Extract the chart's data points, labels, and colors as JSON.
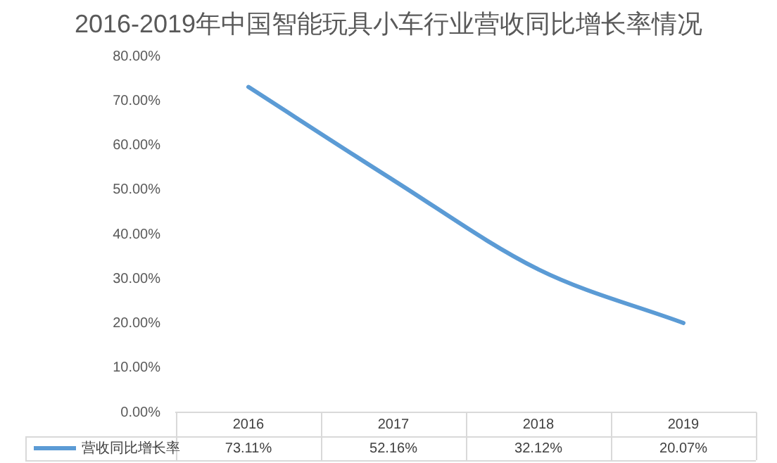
{
  "chart_data": {
    "type": "line",
    "title": "2016-2019年中国智能玩具小车行业营收同比增长率情况",
    "categories": [
      "2016",
      "2017",
      "2018",
      "2019"
    ],
    "series": [
      {
        "name": "营收同比增长率",
        "color": "#5b9bd5",
        "values": [
          73.11,
          52.16,
          32.12,
          20.07
        ],
        "value_labels": [
          "73.11%",
          "52.16%",
          "32.12%",
          "20.07%"
        ]
      }
    ],
    "ylim": [
      0,
      80
    ],
    "yticks": [
      {
        "value": 0,
        "label": "0.00%"
      },
      {
        "value": 10,
        "label": "10.00%"
      },
      {
        "value": 20,
        "label": "20.00%"
      },
      {
        "value": 30,
        "label": "30.00%"
      },
      {
        "value": 40,
        "label": "40.00%"
      },
      {
        "value": 50,
        "label": "50.00%"
      },
      {
        "value": 60,
        "label": "60.00%"
      },
      {
        "value": 70,
        "label": "70.00%"
      },
      {
        "value": 80,
        "label": "80.00%"
      }
    ],
    "grid": false,
    "legend": "bottom",
    "marker": "none",
    "data_labels": true
  }
}
